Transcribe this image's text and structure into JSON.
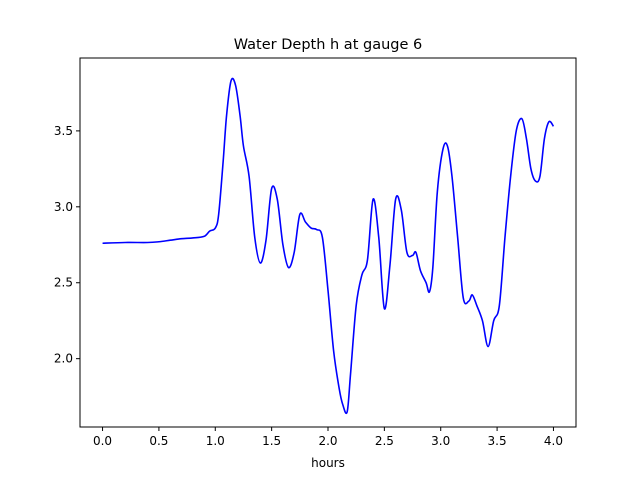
{
  "chart_data": {
    "type": "line",
    "title": "Water Depth h at gauge 6",
    "xlabel": "hours",
    "ylabel": "",
    "xlim": [
      -0.2,
      4.2
    ],
    "ylim": [
      1.55,
      3.98
    ],
    "xticks": [
      0.0,
      0.5,
      1.0,
      1.5,
      2.0,
      2.5,
      3.0,
      3.5,
      4.0
    ],
    "xtick_labels": [
      "0.0",
      "0.5",
      "1.0",
      "1.5",
      "2.0",
      "2.5",
      "3.0",
      "3.5",
      "4.0"
    ],
    "yticks": [
      2.0,
      2.5,
      3.0,
      3.5
    ],
    "ytick_labels": [
      "2.0",
      "2.5",
      "3.0",
      "3.5"
    ],
    "grid": false,
    "line_color": "#0000ff",
    "series": [
      {
        "x": [
          0.0,
          0.2,
          0.4,
          0.5,
          0.6,
          0.7,
          0.8,
          0.9,
          0.95,
          1.0,
          1.03,
          1.07,
          1.1,
          1.14,
          1.18,
          1.22,
          1.25,
          1.3,
          1.35,
          1.4,
          1.45,
          1.5,
          1.55,
          1.6,
          1.65,
          1.7,
          1.75,
          1.8,
          1.85,
          1.9,
          1.95,
          2.0,
          2.05,
          2.1,
          2.13,
          2.17,
          2.2,
          2.25,
          2.3,
          2.35,
          2.4,
          2.45,
          2.5,
          2.55,
          2.6,
          2.65,
          2.7,
          2.75,
          2.78,
          2.82,
          2.87,
          2.9,
          2.93,
          2.97,
          3.02,
          3.06,
          3.1,
          3.15,
          3.2,
          3.25,
          3.28,
          3.32,
          3.37,
          3.42,
          3.47,
          3.52,
          3.57,
          3.62,
          3.67,
          3.72,
          3.76,
          3.8,
          3.84,
          3.88,
          3.92,
          3.96,
          4.0
        ],
        "y": [
          2.76,
          2.765,
          2.765,
          2.77,
          2.78,
          2.79,
          2.795,
          2.805,
          2.84,
          2.86,
          2.95,
          3.3,
          3.6,
          3.83,
          3.8,
          3.6,
          3.4,
          3.2,
          2.8,
          2.63,
          2.78,
          3.12,
          3.05,
          2.75,
          2.6,
          2.7,
          2.95,
          2.9,
          2.86,
          2.85,
          2.8,
          2.45,
          2.05,
          1.8,
          1.7,
          1.65,
          1.9,
          2.35,
          2.55,
          2.65,
          3.05,
          2.8,
          2.33,
          2.62,
          3.05,
          2.98,
          2.7,
          2.68,
          2.7,
          2.58,
          2.5,
          2.44,
          2.6,
          3.1,
          3.38,
          3.4,
          3.2,
          2.8,
          2.4,
          2.38,
          2.42,
          2.35,
          2.25,
          2.08,
          2.25,
          2.35,
          2.8,
          3.2,
          3.5,
          3.58,
          3.45,
          3.25,
          3.17,
          3.2,
          3.45,
          3.56,
          3.53
        ]
      }
    ]
  }
}
